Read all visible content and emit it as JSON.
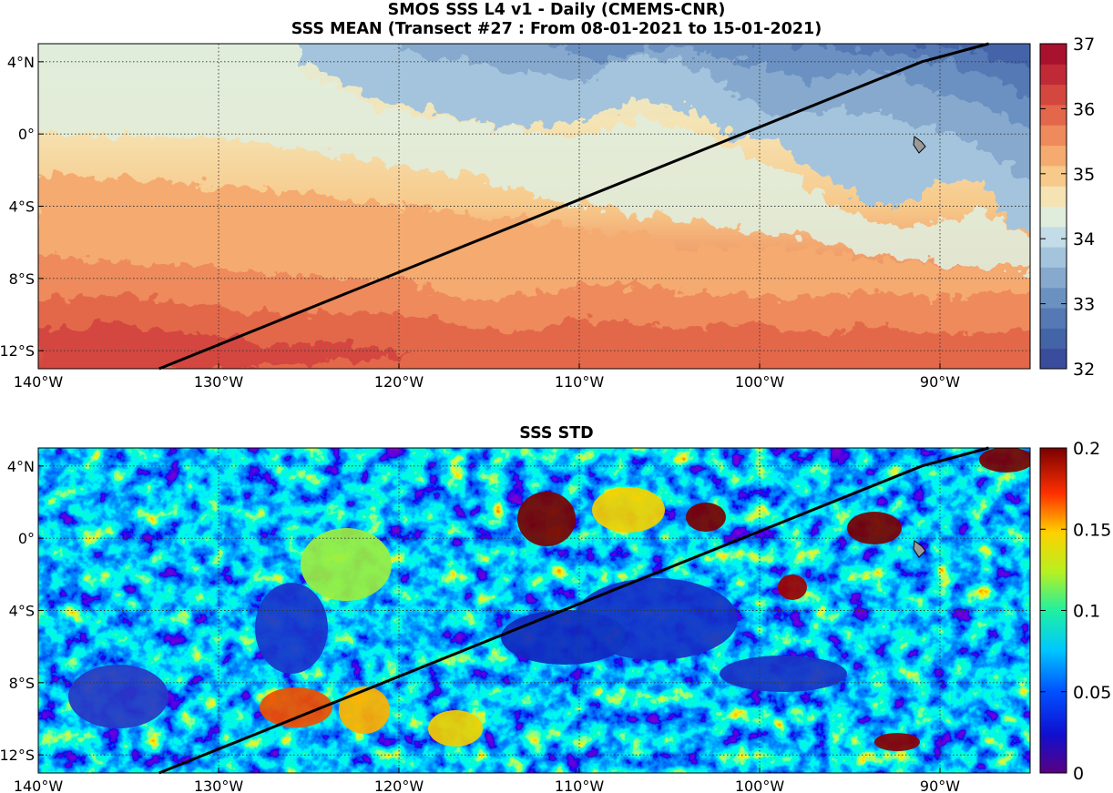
{
  "titles": {
    "line1": "SMOS SSS L4 v1 - Daily (CMEMS-CNR)",
    "line2": "SSS MEAN (Transect #27 : From 08-01-2021 to 15-01-2021)",
    "panel2": "SSS STD"
  },
  "map": {
    "lon_range": [
      -140,
      -85
    ],
    "lat_range": [
      -13,
      5
    ],
    "lon_ticks": [
      "140°W",
      "130°W",
      "120°W",
      "110°W",
      "100°W",
      "90°W"
    ],
    "lon_tick_values": [
      -140,
      -130,
      -120,
      -110,
      -100,
      -90
    ],
    "lat_ticks": [
      "4°N",
      "0°",
      "4°S",
      "8°S",
      "12°S"
    ],
    "lat_tick_values": [
      4,
      0,
      -4,
      -8,
      -12
    ],
    "grid": true,
    "transect": {
      "start": [
        -133.3,
        -13
      ],
      "bend": [
        -91,
        4
      ],
      "end": [
        -87.3,
        5
      ]
    },
    "land_feature": "Galápagos Islands"
  },
  "colorbars": {
    "mean": {
      "ticks": [
        "37",
        "36",
        "35",
        "34",
        "33",
        "32"
      ],
      "range": [
        32,
        37
      ],
      "colormap": "RdYlBu_r",
      "colors": [
        "#3a4c9c",
        "#4464a8",
        "#5479b4",
        "#6b91c1",
        "#86a9cd",
        "#a3c4dc",
        "#c3dce7",
        "#e1eddc",
        "#f5e3b3",
        "#f7c98a",
        "#f5aa6f",
        "#ee8a5c",
        "#e3674a",
        "#d3473f",
        "#c02a37",
        "#a8122e"
      ]
    },
    "std": {
      "ticks": [
        "0.2",
        "0.15",
        "0.1",
        "0.05",
        "0"
      ],
      "range": [
        0,
        0.2
      ],
      "colormap": "jet"
    }
  }
}
